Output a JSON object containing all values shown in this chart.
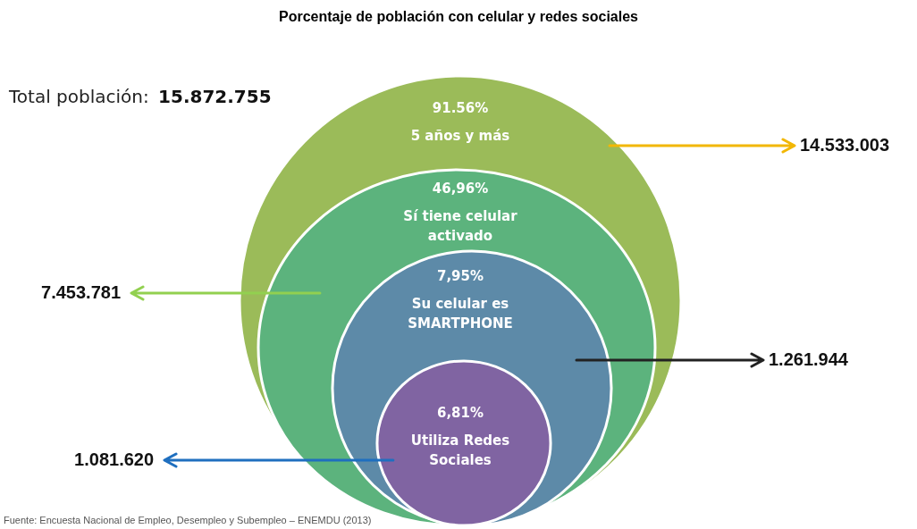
{
  "chart_data": {
    "type": "other",
    "title": "Porcentaje de población con celular y redes sociales",
    "categories": [
      "5 años y más",
      "Sí tiene celular activado",
      "Su celular es SMARTPHONE",
      "Utiliza Redes Sociales"
    ],
    "series": [
      {
        "colors": [
          "#9bbb59",
          "#5cb37d",
          "#5d8aa8",
          "#8064a2"
        ],
        "values": [
          91.56,
          46.96,
          7.95,
          6.81
        ],
        "value_labels": [
          "91.56%",
          "46,96%",
          "7,95%",
          "6,81%"
        ]
      },
      {
        "colors": [
          "#f2b705",
          "#92d050",
          "#222222",
          "#1f6fbf"
        ],
        "values": [
          14533003,
          7453781,
          1261944,
          1081620
        ],
        "value_labels": [
          "14.533.003",
          "7.453.781",
          "1.261.944",
          "1.081.620"
        ]
      }
    ],
    "annotations": [
      "Total población: 15.872.755",
      "Fuente: Encuesta Nacional de Empleo, Desempleo y Subempleo – ENEMDU (2013)"
    ]
  }
}
